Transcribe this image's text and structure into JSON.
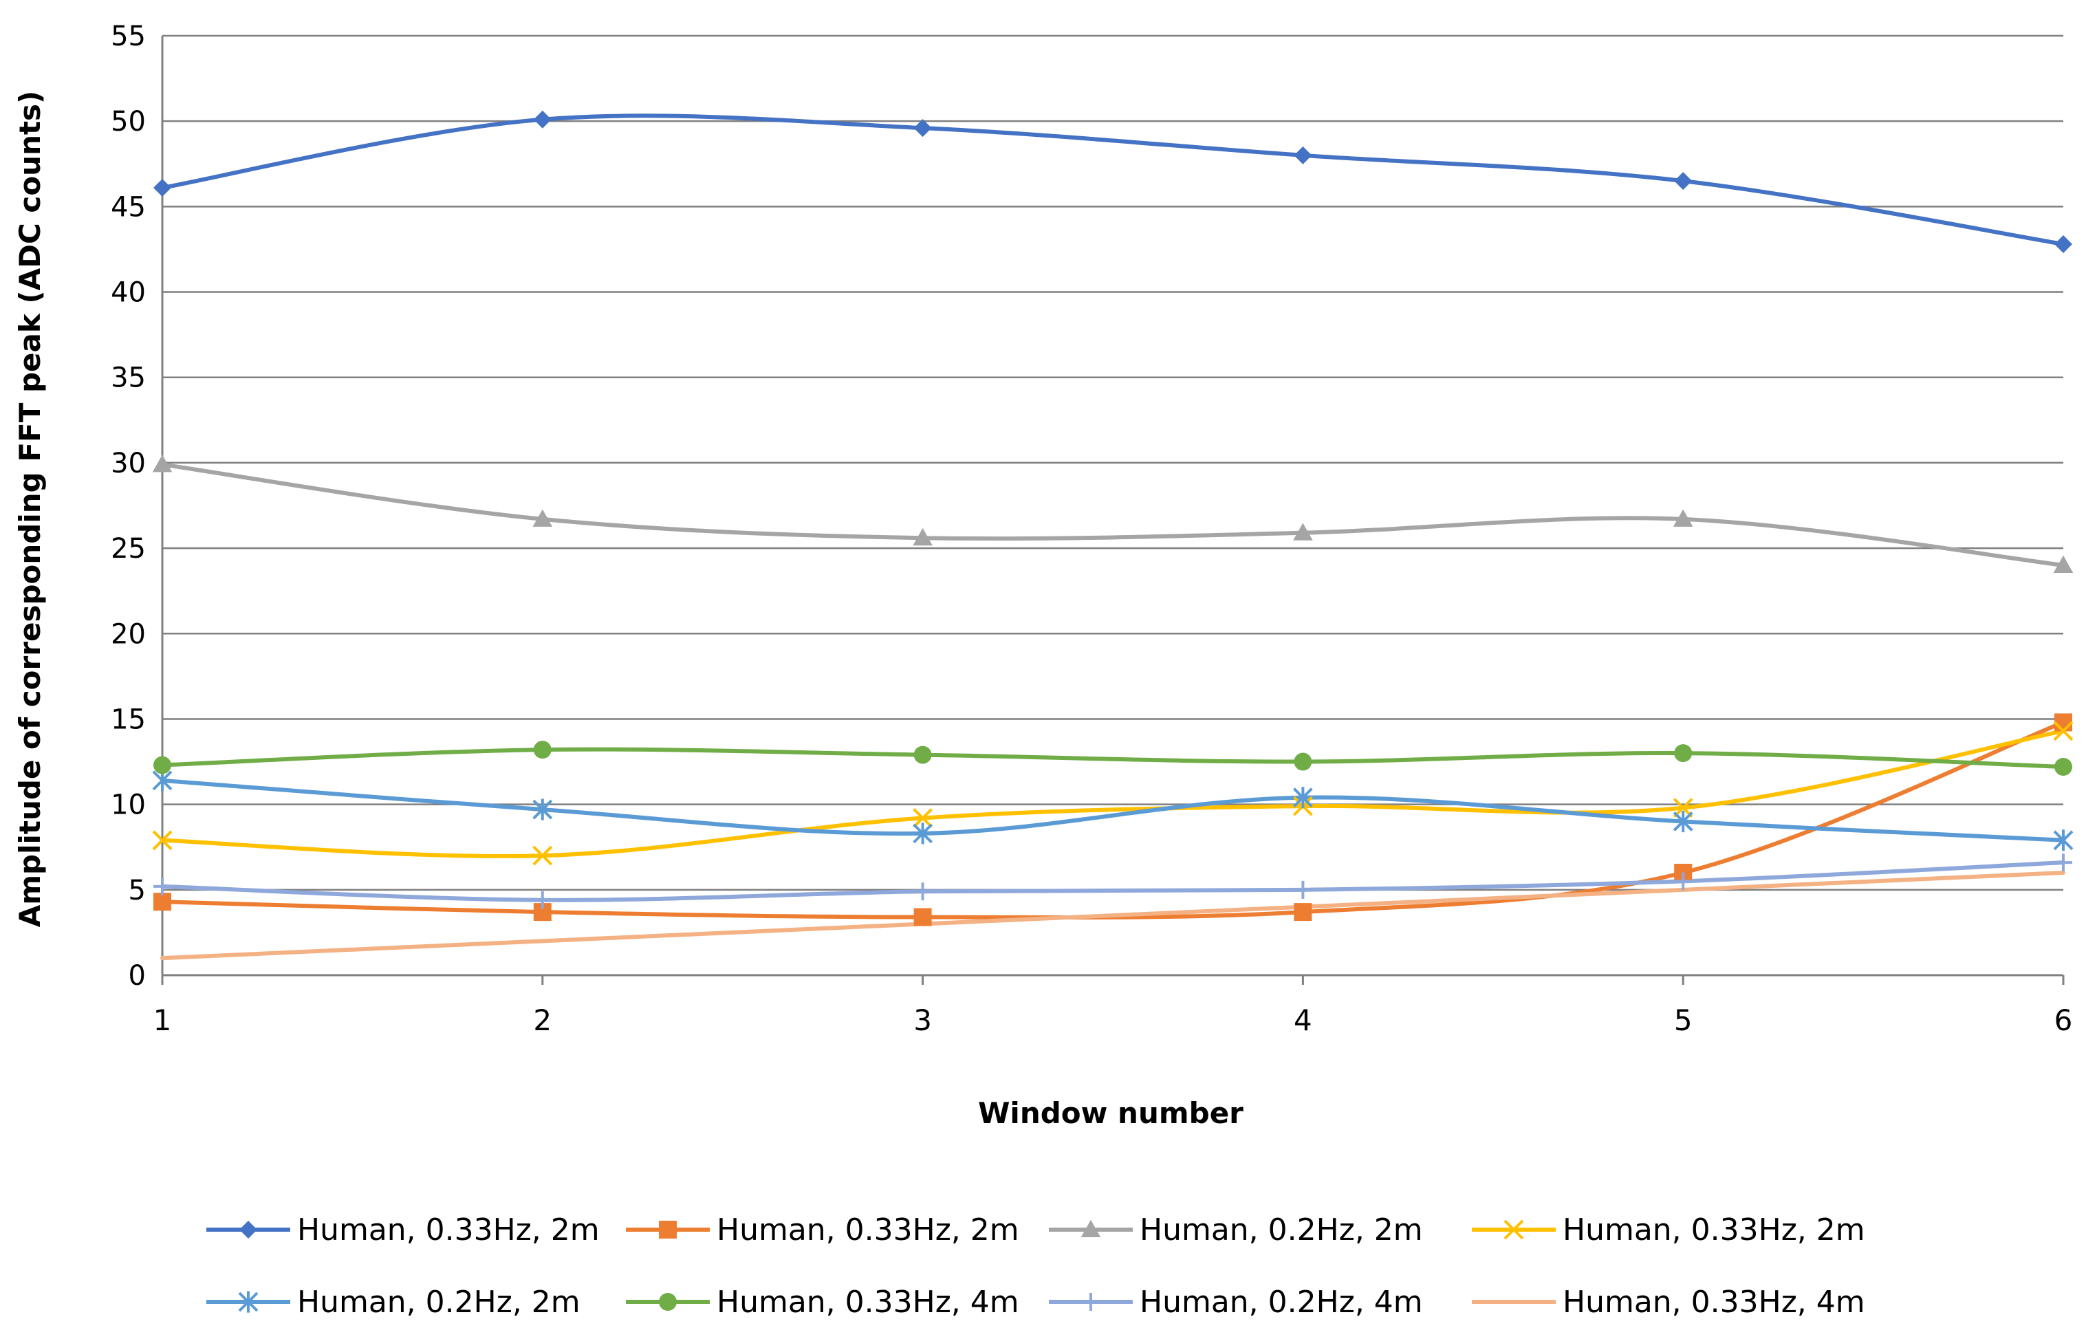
{
  "chart_data": {
    "type": "line",
    "title": "",
    "xlabel": "Window number",
    "ylabel": "Amplitude of corresponding  FFT peak (ADC counts)",
    "x": [
      1,
      2,
      3,
      4,
      5,
      6
    ],
    "x_tick_labels": [
      "1",
      "2",
      "3",
      "4",
      "5",
      "6"
    ],
    "ylim": [
      0,
      55
    ],
    "y_ticks": [
      0,
      5,
      10,
      15,
      20,
      25,
      30,
      35,
      40,
      45,
      50,
      55
    ],
    "grid": "horizontal",
    "smooth": true,
    "legend_position": "bottom",
    "series": [
      {
        "name": "Human, 0.33Hz, 2m",
        "color": "#4472C4",
        "marker": "diamond",
        "values": [
          46.1,
          50.1,
          49.6,
          48.0,
          46.5,
          42.8
        ]
      },
      {
        "name": "Human, 0.33Hz, 2m",
        "color": "#ED7D31",
        "marker": "square",
        "values": [
          4.3,
          3.7,
          3.4,
          3.7,
          6.0,
          14.8
        ]
      },
      {
        "name": "Human, 0.2Hz, 2m",
        "color": "#A5A5A5",
        "marker": "triangle",
        "values": [
          29.9,
          26.7,
          25.6,
          25.9,
          26.7,
          24.0
        ]
      },
      {
        "name": "Human, 0.33Hz, 2m",
        "color": "#FFC000",
        "marker": "x",
        "values": [
          7.9,
          7.0,
          9.2,
          9.9,
          9.8,
          14.3
        ]
      },
      {
        "name": "Human, 0.2Hz, 2m",
        "color": "#5B9BD5",
        "marker": "star",
        "values": [
          11.4,
          9.7,
          8.3,
          10.4,
          9.0,
          7.9
        ]
      },
      {
        "name": "Human, 0.33Hz, 4m",
        "color": "#70AD47",
        "marker": "circle",
        "values": [
          12.3,
          13.2,
          12.9,
          12.5,
          13.0,
          12.2
        ]
      },
      {
        "name": "Human, 0.2Hz, 4m",
        "color": "#8FA8DC",
        "marker": "plus",
        "values": [
          5.2,
          4.4,
          4.9,
          5.0,
          5.5,
          6.6
        ]
      },
      {
        "name": "Human, 0.33Hz, 4m",
        "color": "#F4B183",
        "marker": "none",
        "values": [
          1.0,
          2.0,
          3.0,
          4.0,
          5.0,
          6.0
        ]
      }
    ]
  }
}
